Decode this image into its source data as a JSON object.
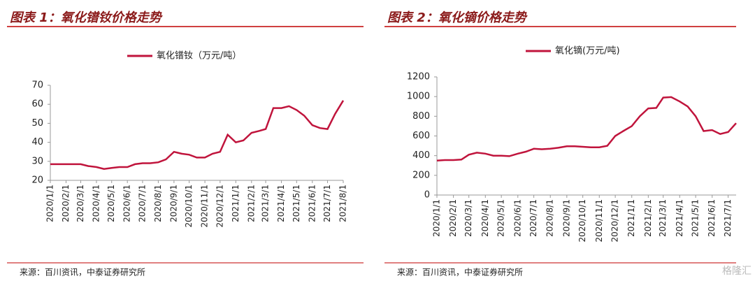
{
  "chart_data": [
    {
      "type": "line",
      "title": "图表 1：氧化镨钕价格走势",
      "source": "来源：百川资讯，中泰证券研究所",
      "x": [
        "2020/1/1",
        "2020/1/16",
        "2020/2/1",
        "2020/2/16",
        "2020/3/1",
        "2020/3/16",
        "2020/4/1",
        "2020/4/16",
        "2020/5/1",
        "2020/5/16",
        "2020/6/1",
        "2020/6/16",
        "2020/7/1",
        "2020/7/16",
        "2020/8/1",
        "2020/8/16",
        "2020/9/1",
        "2020/9/16",
        "2020/10/1",
        "2020/10/16",
        "2020/11/1",
        "2020/11/16",
        "2020/12/1",
        "2020/12/16",
        "2021/1/1",
        "2021/1/16",
        "2021/2/1",
        "2021/2/16",
        "2021/3/1",
        "2021/3/16",
        "2021/4/1",
        "2021/4/16",
        "2021/5/1",
        "2021/5/16",
        "2021/6/1",
        "2021/6/16",
        "2021/7/1",
        "2021/7/16",
        "2021/8/1"
      ],
      "series": [
        {
          "name": "氧化镨钕（万元/吨）",
          "color": "#c0143c",
          "values": [
            28.5,
            28.5,
            28.5,
            28.5,
            28.5,
            27.5,
            27,
            26,
            26.5,
            27,
            27,
            28.5,
            29,
            29,
            29.5,
            31,
            35,
            34,
            33.5,
            32,
            32,
            34,
            35,
            44,
            40,
            41,
            45,
            46,
            47,
            58,
            58,
            59,
            57,
            54,
            49,
            47.5,
            47,
            55,
            62
          ]
        }
      ],
      "ylim": [
        20,
        70
      ],
      "yticks": [
        20,
        30,
        40,
        50,
        60,
        70
      ],
      "xticks": [
        "2020/1/1",
        "2020/2/1",
        "2020/3/1",
        "2020/4/1",
        "2020/5/1",
        "2020/6/1",
        "2020/7/1",
        "2020/8/1",
        "2020/9/1",
        "2020/10/1",
        "2020/11/1",
        "2020/12/1",
        "2021/1/1",
        "2021/2/1",
        "2021/3/1",
        "2021/4/1",
        "2021/5/1",
        "2021/6/1",
        "2021/7/1",
        "2021/8/1"
      ]
    },
    {
      "type": "line",
      "title": "图表 2：氧化镝价格走势",
      "source": "来源：百川资讯，中泰证券研究所",
      "x": [
        "2020/1/1",
        "2020/1/16",
        "2020/2/1",
        "2020/2/16",
        "2020/3/1",
        "2020/3/16",
        "2020/4/1",
        "2020/4/16",
        "2020/5/1",
        "2020/5/16",
        "2020/6/1",
        "2020/6/16",
        "2020/7/1",
        "2020/7/16",
        "2020/8/1",
        "2020/8/16",
        "2020/9/1",
        "2020/9/16",
        "2020/10/1",
        "2020/10/16",
        "2020/11/1",
        "2020/11/16",
        "2020/12/1",
        "2020/12/16",
        "2021/1/1",
        "2021/1/16",
        "2021/2/1",
        "2021/2/16",
        "2021/3/1",
        "2021/3/16",
        "2021/4/1",
        "2021/4/16",
        "2021/5/1",
        "2021/5/16",
        "2021/6/1",
        "2021/6/16",
        "2021/7/1",
        "2021/7/16"
      ],
      "series": [
        {
          "name": "氧化镝(万元/吨)",
          "color": "#c0143c",
          "values": [
            350,
            355,
            355,
            360,
            410,
            430,
            420,
            400,
            400,
            395,
            420,
            440,
            470,
            465,
            470,
            480,
            495,
            495,
            490,
            485,
            485,
            500,
            600,
            650,
            700,
            800,
            880,
            885,
            990,
            995,
            950,
            900,
            800,
            650,
            660,
            620,
            640,
            730
          ]
        }
      ],
      "ylim": [
        0,
        1200
      ],
      "yticks": [
        0,
        200,
        400,
        600,
        800,
        1000,
        1200
      ],
      "xticks": [
        "2020/1/1",
        "2020/2/1",
        "2020/3/1",
        "2020/4/1",
        "2020/5/1",
        "2020/6/1",
        "2020/7/1",
        "2020/8/1",
        "2020/9/1",
        "2020/10/1",
        "2020/11/1",
        "2020/12/1",
        "2021/1/1",
        "2021/2/1",
        "2021/3/1",
        "2021/4/1",
        "2021/5/1",
        "2021/6/1",
        "2021/7/1"
      ]
    }
  ],
  "watermark": "格隆汇"
}
